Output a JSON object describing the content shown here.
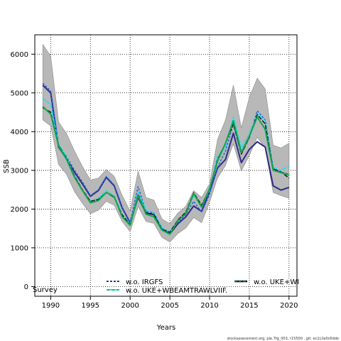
{
  "chart_data": {
    "type": "line",
    "title": "",
    "xlabel": "Years",
    "ylabel": "SSB",
    "xlim": [
      1988,
      2021
    ],
    "ylim": [
      -250,
      6500
    ],
    "x_ticks": [
      1990,
      1995,
      2000,
      2005,
      2010,
      2015,
      2020
    ],
    "y_ticks": [
      0,
      1000,
      2000,
      3000,
      4000,
      5000,
      6000
    ],
    "grid": true,
    "grid_style": "dotted",
    "legend_position": "bottom",
    "years": [
      1989,
      1990,
      1991,
      1992,
      1993,
      1994,
      1995,
      1996,
      1997,
      1998,
      1999,
      2000,
      2001,
      2002,
      2003,
      2004,
      2005,
      2006,
      2007,
      2008,
      2009,
      2010,
      2011,
      2012,
      2013,
      2014,
      2015,
      2016,
      2017,
      2018,
      2019,
      2020
    ],
    "band": {
      "color": "#b8b8b8",
      "upper": [
        6250,
        5950,
        4250,
        3950,
        3500,
        3100,
        2750,
        2800,
        3020,
        2850,
        2350,
        1950,
        2980,
        2300,
        2230,
        1750,
        1620,
        1900,
        2070,
        2480,
        2300,
        2650,
        3800,
        4300,
        5200,
        4100,
        4880,
        5380,
        5100,
        3650,
        3580,
        3700
      ],
      "lower": [
        4300,
        4150,
        3150,
        2900,
        2450,
        2150,
        1880,
        1970,
        2200,
        2100,
        1680,
        1420,
        2070,
        1680,
        1630,
        1270,
        1150,
        1370,
        1510,
        1780,
        1650,
        2180,
        2800,
        3130,
        3680,
        2990,
        3380,
        3860,
        3580,
        2430,
        2350,
        2280
      ]
    },
    "series": [
      {
        "name": "",
        "color": "#2e2b88",
        "values": [
          5200,
          5000,
          3600,
          3300,
          2950,
          2650,
          2330,
          2480,
          2820,
          2600,
          2030,
          1650,
          2300,
          1900,
          1860,
          1480,
          1360,
          1620,
          1800,
          2080,
          1940,
          2450,
          3060,
          3280,
          3960,
          3200,
          3540,
          3740,
          3600,
          2600,
          2490,
          2560
        ]
      },
      {
        "name": "w.o. IRGFS",
        "color": "#1f5fd6",
        "dash": "3,2",
        "values": [
          5250,
          5050,
          3650,
          3350,
          3000,
          2700,
          2350,
          2500,
          2840,
          2620,
          2050,
          1660,
          2580,
          1930,
          1900,
          1500,
          1380,
          1660,
          1860,
          2200,
          1920,
          2380,
          3080,
          3500,
          4200,
          3420,
          3850,
          4540,
          4300,
          3050,
          2960,
          2900
        ]
      },
      {
        "name": "w.o. UKE+WBEAMTRAWLVIIF.",
        "color": "#00e5ff",
        "dash": "5,2",
        "values": [
          4850,
          4700,
          3680,
          3350,
          2850,
          2500,
          2200,
          2280,
          2480,
          2340,
          1870,
          1620,
          2440,
          1980,
          1910,
          1520,
          1420,
          1700,
          1900,
          2360,
          2060,
          2480,
          3380,
          3600,
          4380,
          3580,
          3960,
          4460,
          4280,
          3080,
          3000,
          3120
        ]
      },
      {
        "name": "w.o. UKE+WI",
        "color": "#111111",
        "dash": "6,2",
        "values": [
          4620,
          4500,
          3650,
          3300,
          2850,
          2500,
          2200,
          2250,
          2430,
          2300,
          1850,
          1600,
          2380,
          1900,
          1860,
          1480,
          1400,
          1720,
          1920,
          2420,
          2100,
          2520,
          3280,
          3700,
          4200,
          3420,
          3850,
          4440,
          4200,
          3040,
          2960,
          2800
        ]
      },
      {
        "name": "",
        "color": "#17a34a",
        "values": [
          4650,
          4450,
          3630,
          3280,
          2820,
          2480,
          2160,
          2220,
          2430,
          2320,
          1800,
          1580,
          2350,
          1870,
          1800,
          1460,
          1350,
          1700,
          1880,
          2400,
          2050,
          2530,
          3240,
          3700,
          4280,
          3460,
          3880,
          4380,
          4060,
          3000,
          2940,
          2880
        ]
      }
    ],
    "annotations": [
      "Survey"
    ],
    "footer": "stockassessment.org, ple.7fg_003, r15500 , git: ec2c2a0c6dde"
  }
}
